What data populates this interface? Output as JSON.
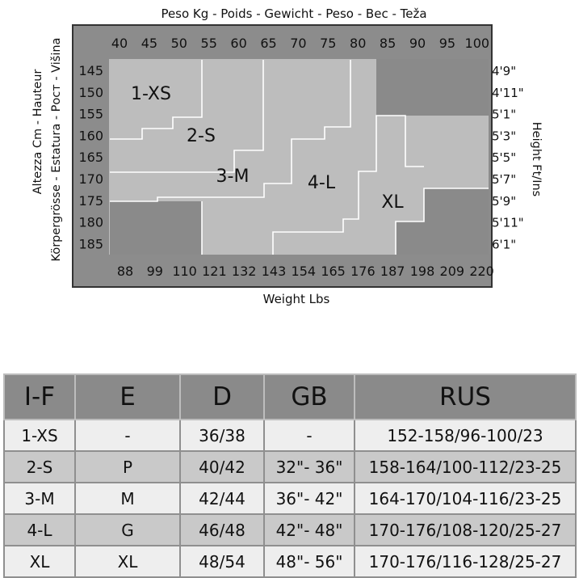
{
  "chart": {
    "kg_axis_title": "Peso Kg - Poids - Gewicht - Peso - Bec - Teža",
    "lbs_axis_title": "Weight Lbs",
    "cm_axis_title_line1": "Altezza Cm - Hauteur",
    "cm_axis_title_line2": "Körpergrösse - Estatura - Рост - Višina",
    "ftin_axis_title": "Height Ft/Ins",
    "kg_ticks": [
      "40",
      "45",
      "50",
      "55",
      "60",
      "65",
      "70",
      "75",
      "80",
      "85",
      "90",
      "95",
      "100"
    ],
    "lbs_ticks": [
      "88",
      "99",
      "110",
      "121",
      "132",
      "143",
      "154",
      "165",
      "176",
      "187",
      "198",
      "209",
      "220"
    ],
    "cm_ticks": [
      "145",
      "150",
      "155",
      "160",
      "165",
      "170",
      "175",
      "180",
      "185"
    ],
    "ftin_ticks": [
      "4'9\"",
      "4'11\"",
      "5'1\"",
      "5'3\"",
      "5'5\"",
      "5'7\"",
      "5'9\"",
      "5'11\"",
      "6'1\""
    ],
    "zone_labels": {
      "xs": "1-XS",
      "s": "2-S",
      "m": "3-M",
      "l": "4-L",
      "xl": "XL"
    },
    "colors": {
      "frame": "#8c8c8c",
      "zone": "#bdbdbd",
      "out_of_range": "#8a8a8a",
      "boundary": "#ffffff"
    }
  },
  "table": {
    "headers": [
      "I-F",
      "E",
      "D",
      "GB",
      "RUS"
    ],
    "rows": [
      [
        "1-XS",
        "-",
        "36/38",
        "-",
        "152-158/96-100/23"
      ],
      [
        "2-S",
        "P",
        "40/42",
        "32\"- 36\"",
        "158-164/100-112/23-25"
      ],
      [
        "3-M",
        "M",
        "42/44",
        "36\"- 42\"",
        "164-170/104-116/23-25"
      ],
      [
        "4-L",
        "G",
        "46/48",
        "42\"- 48\"",
        "170-176/108-120/25-27"
      ],
      [
        "XL",
        "XL",
        "48/54",
        "48\"- 56\"",
        "170-176/116-128/25-27"
      ]
    ]
  }
}
